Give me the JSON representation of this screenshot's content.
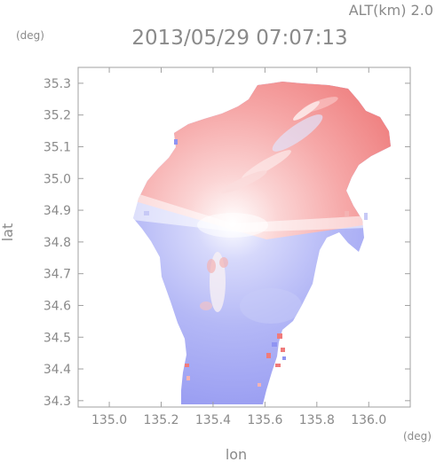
{
  "header": {
    "altitude_label": "ALT(km)  2.0",
    "datetime": "2013/05/29 07:07:13"
  },
  "map": {
    "x_unit": "(deg)",
    "y_unit": "(deg)",
    "x_label": "lon",
    "y_label": "lat",
    "x_range": [
      134.88,
      136.16
    ],
    "y_range": [
      34.28,
      35.35
    ],
    "x_ticks": [
      "135.0",
      "135.2",
      "135.4",
      "135.6",
      "135.8",
      "136.0"
    ],
    "x_tick_values": [
      135.0,
      135.2,
      135.4,
      135.6,
      135.8,
      136.0
    ],
    "y_ticks": [
      "35.3",
      "35.2",
      "35.1",
      "35.0",
      "34.9",
      "34.8",
      "34.7",
      "34.6",
      "34.5",
      "34.4",
      "34.3"
    ],
    "y_tick_values": [
      35.3,
      35.2,
      35.1,
      35.0,
      34.9,
      34.8,
      34.7,
      34.6,
      34.5,
      34.4,
      34.3
    ],
    "radar_center": [
      135.52,
      34.87
    ],
    "colors": {
      "approaching": "#8f94f2",
      "receding": "#f07b7b",
      "zero": "#ffffff",
      "axis": "#a0a0a0"
    }
  }
}
